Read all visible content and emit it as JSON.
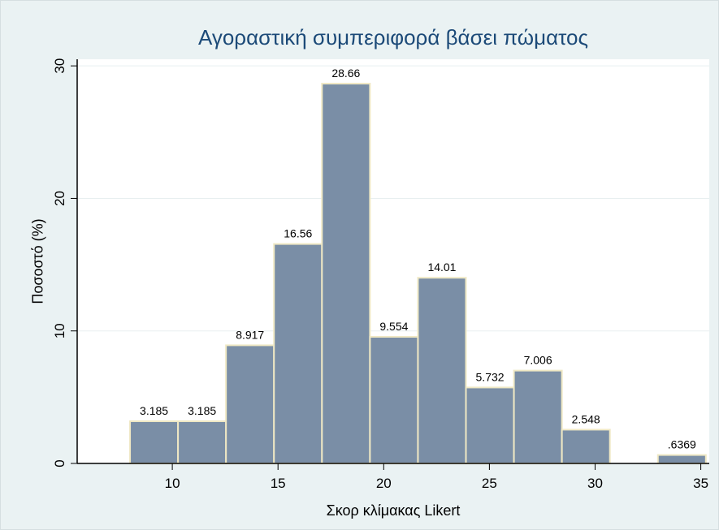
{
  "chart_data": {
    "type": "bar",
    "title": "Αγοραστική συμπεριφορά βάσει πώματος",
    "xlabel": "Σκορ κλίμακας Likert",
    "ylabel": "Ποσοστό (%)",
    "bin_width": 2.27,
    "bins": [
      {
        "x0": 8.0,
        "x1": 10.27,
        "value": 3.185,
        "label": "3.185"
      },
      {
        "x0": 10.27,
        "x1": 12.54,
        "value": 3.185,
        "label": "3.185"
      },
      {
        "x0": 12.54,
        "x1": 14.81,
        "value": 8.917,
        "label": "8.917"
      },
      {
        "x0": 14.81,
        "x1": 17.08,
        "value": 16.56,
        "label": "16.56"
      },
      {
        "x0": 17.08,
        "x1": 19.35,
        "value": 28.66,
        "label": "28.66"
      },
      {
        "x0": 19.35,
        "x1": 21.62,
        "value": 9.554,
        "label": "9.554"
      },
      {
        "x0": 21.62,
        "x1": 23.89,
        "value": 14.01,
        "label": "14.01"
      },
      {
        "x0": 23.89,
        "x1": 26.16,
        "value": 5.732,
        "label": "5.732"
      },
      {
        "x0": 26.16,
        "x1": 28.43,
        "value": 7.006,
        "label": "7.006"
      },
      {
        "x0": 28.43,
        "x1": 30.7,
        "value": 2.548,
        "label": "2.548"
      },
      {
        "x0": 32.97,
        "x1": 35.24,
        "value": 0.6369,
        "label": ".6369"
      }
    ],
    "xlim": [
      5.5,
      35.4
    ],
    "ylim": [
      0,
      30.5
    ],
    "xticks": [
      10,
      15,
      20,
      25,
      30,
      35
    ],
    "yticks": [
      0,
      10,
      20,
      30
    ],
    "grid": true,
    "colors": {
      "bar": "#7a8ea6",
      "bar_edge": "#efe8c4",
      "title": "#1c4a78",
      "background": "#eaf2f3",
      "grid": "#e8eff0"
    }
  }
}
